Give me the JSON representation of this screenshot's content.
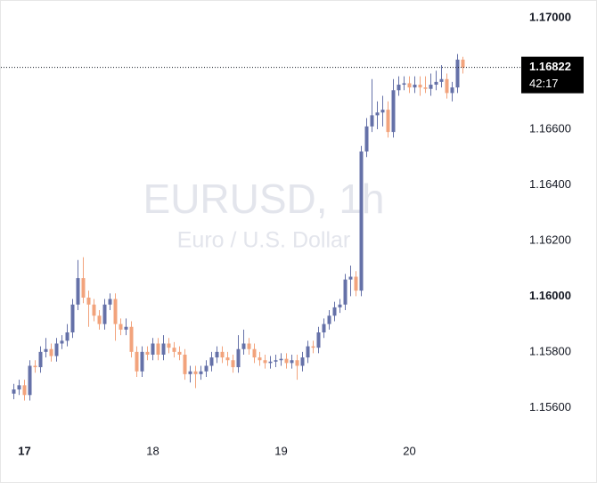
{
  "chart_data": {
    "type": "candlestick",
    "watermark": {
      "title": "EURUSD, 1h",
      "subtitle": "Euro / U.S. Dollar"
    },
    "categories": [
      null,
      null,
      "17",
      null,
      null,
      null,
      null,
      null,
      null,
      null,
      null,
      null,
      null,
      null,
      null,
      null,
      null,
      null,
      null,
      null,
      null,
      null,
      null,
      null,
      null,
      null,
      "18",
      null,
      null,
      null,
      null,
      null,
      null,
      null,
      null,
      null,
      null,
      null,
      null,
      null,
      null,
      null,
      null,
      null,
      null,
      null,
      null,
      null,
      null,
      null,
      "19",
      null,
      null,
      null,
      null,
      null,
      null,
      null,
      null,
      null,
      null,
      null,
      null,
      null,
      null,
      null,
      null,
      null,
      null,
      null,
      null,
      null,
      null,
      null,
      "20",
      null,
      null,
      null,
      null,
      null,
      null,
      null,
      null,
      null,
      null
    ],
    "open": [
      1.1565,
      1.15665,
      1.1568,
      1.15645,
      1.1575,
      1.15745,
      1.158,
      1.1581,
      1.15785,
      1.1583,
      1.1584,
      1.1587,
      1.1597,
      1.16065,
      1.15995,
      1.1597,
      1.1593,
      1.159,
      1.1597,
      1.1599,
      1.159,
      1.1588,
      1.1589,
      1.158,
      1.1573,
      1.158,
      1.1579,
      1.1583,
      1.1579,
      1.1583,
      1.15815,
      1.158,
      1.1579,
      1.1572,
      1.1573,
      1.1572,
      1.1573,
      1.1575,
      1.1578,
      1.158,
      1.1578,
      1.1577,
      1.15745,
      1.1581,
      1.1583,
      1.1581,
      1.1578,
      1.1577,
      1.1576,
      1.15765,
      1.1577,
      1.15775,
      1.1576,
      1.1577,
      1.1575,
      1.1578,
      1.1582,
      1.15815,
      1.1587,
      1.159,
      1.1593,
      1.1596,
      1.1597,
      1.1606,
      1.1607,
      1.1602,
      1.1652,
      1.1661,
      1.1665,
      1.1666,
      1.1667,
      1.1659,
      1.1674,
      1.1676,
      1.16765,
      1.1675,
      1.1676,
      1.1675,
      1.16745,
      1.1676,
      1.1677,
      1.1678,
      1.1673,
      1.1675,
      1.1685
    ],
    "high": [
      1.15685,
      1.157,
      1.157,
      1.1577,
      1.1577,
      1.1582,
      1.1585,
      1.1583,
      1.1585,
      1.1586,
      1.159,
      1.1599,
      1.1613,
      1.1614,
      1.1602,
      1.1599,
      1.1595,
      1.1599,
      1.1601,
      1.1601,
      1.1592,
      1.1592,
      1.1591,
      1.1582,
      1.1582,
      1.1582,
      1.1585,
      1.1585,
      1.1586,
      1.1585,
      1.15835,
      1.1582,
      1.1581,
      1.1575,
      1.1575,
      1.1575,
      1.1577,
      1.158,
      1.1582,
      1.1582,
      1.158,
      1.1579,
      1.1586,
      1.1588,
      1.1585,
      1.1583,
      1.158,
      1.1579,
      1.15785,
      1.1579,
      1.15795,
      1.15795,
      1.1579,
      1.1579,
      1.158,
      1.1584,
      1.1584,
      1.1589,
      1.1592,
      1.1595,
      1.1598,
      1.1599,
      1.1608,
      1.1611,
      1.1609,
      1.1654,
      1.1664,
      1.1678,
      1.167,
      1.1672,
      1.167,
      1.1678,
      1.1679,
      1.1679,
      1.1679,
      1.1679,
      1.1679,
      1.1679,
      1.168,
      1.1681,
      1.1683,
      1.168,
      1.1677,
      1.1687,
      1.1686
    ],
    "low": [
      1.1563,
      1.15645,
      1.15625,
      1.15625,
      1.15725,
      1.15725,
      1.1578,
      1.15765,
      1.15765,
      1.1581,
      1.1582,
      1.1585,
      1.1595,
      1.15975,
      1.1589,
      1.1591,
      1.1588,
      1.1588,
      1.1595,
      1.1584,
      1.1586,
      1.1586,
      1.1578,
      1.1571,
      1.1571,
      1.1577,
      1.1577,
      1.1577,
      1.1577,
      1.15795,
      1.1578,
      1.1577,
      1.157,
      1.1569,
      1.1567,
      1.157,
      1.1571,
      1.1573,
      1.1576,
      1.1576,
      1.1575,
      1.15725,
      1.15725,
      1.1579,
      1.1579,
      1.1576,
      1.1575,
      1.1574,
      1.1574,
      1.15745,
      1.1575,
      1.1574,
      1.1574,
      1.157,
      1.1573,
      1.1576,
      1.15795,
      1.15795,
      1.1585,
      1.1588,
      1.1591,
      1.1594,
      1.1595,
      1.16,
      1.16,
      1.16,
      1.165,
      1.1659,
      1.166,
      1.1661,
      1.1657,
      1.1657,
      1.1672,
      1.1674,
      1.1673,
      1.1673,
      1.1672,
      1.1673,
      1.1672,
      1.1674,
      1.1675,
      1.1671,
      1.167,
      1.1673,
      1.168
    ],
    "close": [
      1.15665,
      1.1568,
      1.15645,
      1.1575,
      1.15745,
      1.158,
      1.1581,
      1.15785,
      1.1583,
      1.1584,
      1.1587,
      1.1597,
      1.16065,
      1.15995,
      1.1597,
      1.1593,
      1.159,
      1.1597,
      1.1599,
      1.159,
      1.1588,
      1.1589,
      1.158,
      1.1573,
      1.158,
      1.1579,
      1.1583,
      1.1579,
      1.1583,
      1.15815,
      1.158,
      1.1579,
      1.1572,
      1.1573,
      1.1572,
      1.1573,
      1.1575,
      1.1578,
      1.158,
      1.1578,
      1.1577,
      1.15745,
      1.1581,
      1.1583,
      1.1581,
      1.1578,
      1.1577,
      1.1576,
      1.15765,
      1.1577,
      1.15775,
      1.1576,
      1.1577,
      1.1575,
      1.1578,
      1.1582,
      1.15815,
      1.1587,
      1.159,
      1.1593,
      1.1596,
      1.1597,
      1.1606,
      1.1607,
      1.1602,
      1.1652,
      1.1661,
      1.1665,
      1.1666,
      1.1667,
      1.1659,
      1.1674,
      1.1676,
      1.16765,
      1.1675,
      1.1676,
      1.1675,
      1.16745,
      1.1676,
      1.1677,
      1.1678,
      1.1673,
      1.1675,
      1.1685,
      1.16822
    ],
    "up_color": "#6571a8",
    "down_color": "#f2a37c",
    "ylim": [
      1.15489,
      1.17061
    ],
    "yticks": [
      {
        "value": 1.156,
        "label": "1.15600"
      },
      {
        "value": 1.158,
        "label": "1.15800"
      },
      {
        "value": 1.16,
        "label": "1.16000",
        "bold": true
      },
      {
        "value": 1.162,
        "label": "1.16200"
      },
      {
        "value": 1.164,
        "label": "1.16400"
      },
      {
        "value": 1.166,
        "label": "1.16600"
      },
      {
        "value": 1.17,
        "label": "1.17000",
        "bold": true
      }
    ],
    "last_price": 1.16822,
    "countdown": "42:17"
  }
}
